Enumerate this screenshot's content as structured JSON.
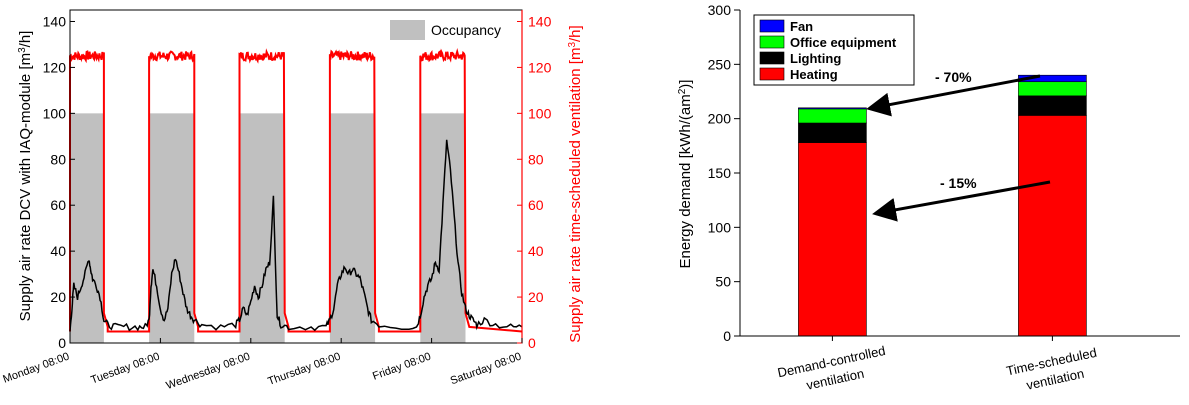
{
  "chart_data": [
    {
      "type": "line",
      "title": "",
      "ylabel_left": "Supply air rate DCV with IAQ-module [m³/h]",
      "ylabel_right": "Supply air rate time-scheduled ventilation [m³/h]",
      "ylim": [
        0,
        145
      ],
      "yticks": [
        "0",
        "20",
        "40",
        "60",
        "80",
        "100",
        "120",
        "140"
      ],
      "xlim_hours": [
        0,
        120
      ],
      "xticks": [
        "Monday 08:00",
        "Tuesday 08:00",
        "Wednesday 08:00",
        "Thursday 08:00",
        "Friday 08:00",
        "Saturday 08:00"
      ],
      "legend": {
        "position": "top-right",
        "entries": [
          "Occupancy"
        ]
      },
      "grid": false,
      "colors": {
        "occupancy": "#c0c0c0",
        "dcv": "#000000",
        "scheduled": "#ff0000"
      },
      "series": [
        {
          "name": "Occupancy",
          "kind": "area",
          "intervals": [
            [
              0,
              9
            ],
            [
              21,
              33
            ],
            [
              45,
              57
            ],
            [
              69,
              81
            ],
            [
              93,
              105
            ]
          ],
          "value": 100
        },
        {
          "kind": "line",
          "color": "red",
          "on_intervals": [
            [
              0,
              9
            ],
            [
              21,
              33
            ],
            [
              45,
              57
            ],
            [
              69,
              81
            ],
            [
              93,
              105
            ]
          ],
          "on_value": 125,
          "off_value": 5
        },
        {
          "kind": "line",
          "color": "black",
          "points": [
            [
              0,
              5
            ],
            [
              0.5,
              15
            ],
            [
              1,
              25
            ],
            [
              2,
              20
            ],
            [
              3,
              25
            ],
            [
              4,
              30
            ],
            [
              5,
              37
            ],
            [
              5.5,
              32
            ],
            [
              6,
              28
            ],
            [
              7,
              25
            ],
            [
              8,
              20
            ],
            [
              9,
              10
            ],
            [
              10,
              8
            ],
            [
              12,
              7
            ],
            [
              15,
              7
            ],
            [
              18,
              7
            ],
            [
              20,
              7
            ],
            [
              21,
              10
            ],
            [
              21.5,
              25
            ],
            [
              22,
              32
            ],
            [
              23,
              25
            ],
            [
              24,
              15
            ],
            [
              25,
              10
            ],
            [
              26,
              15
            ],
            [
              27,
              30
            ],
            [
              28,
              37
            ],
            [
              29,
              30
            ],
            [
              30,
              22
            ],
            [
              31,
              15
            ],
            [
              32,
              12
            ],
            [
              33,
              10
            ],
            [
              35,
              8
            ],
            [
              40,
              7
            ],
            [
              44,
              8
            ],
            [
              45,
              10
            ],
            [
              46,
              15
            ],
            [
              47,
              12
            ],
            [
              48,
              18
            ],
            [
              49,
              25
            ],
            [
              50,
              20
            ],
            [
              51,
              25
            ],
            [
              52,
              32
            ],
            [
              53,
              35
            ],
            [
              54,
              63
            ],
            [
              55,
              12
            ],
            [
              56,
              8
            ],
            [
              58,
              7
            ],
            [
              64,
              7
            ],
            [
              68,
              7
            ],
            [
              69,
              10
            ],
            [
              70,
              15
            ],
            [
              71,
              25
            ],
            [
              72,
              30
            ],
            [
              73,
              33
            ],
            [
              74,
              30
            ],
            [
              75,
              32
            ],
            [
              76,
              30
            ],
            [
              77,
              28
            ],
            [
              78,
              22
            ],
            [
              79,
              15
            ],
            [
              80,
              10
            ],
            [
              82,
              8
            ],
            [
              88,
              7
            ],
            [
              92,
              7
            ],
            [
              93,
              12
            ],
            [
              94,
              20
            ],
            [
              95,
              25
            ],
            [
              96,
              28
            ],
            [
              97,
              35
            ],
            [
              98,
              32
            ],
            [
              99,
              60
            ],
            [
              100,
              88
            ],
            [
              101,
              75
            ],
            [
              102,
              55
            ],
            [
              103,
              35
            ],
            [
              104,
              22
            ],
            [
              105,
              15
            ],
            [
              106,
              12
            ],
            [
              107,
              10
            ],
            [
              108,
              8
            ],
            [
              110,
              10
            ],
            [
              113,
              8
            ],
            [
              117,
              7
            ],
            [
              120,
              7
            ]
          ]
        }
      ]
    },
    {
      "type": "bar",
      "stacked": true,
      "title": "",
      "ylabel": "Energy demand [kWh/(am²)]",
      "ylim": [
        0,
        300
      ],
      "yticks": [
        "0",
        "50",
        "100",
        "150",
        "200",
        "250",
        "300"
      ],
      "categories": [
        "Demand-controlled ventilation",
        "Time-scheduled ventilation"
      ],
      "legend": {
        "position": "top-left"
      },
      "grid": false,
      "series": [
        {
          "name": "Heating",
          "color": "#ff0000",
          "values": [
            178,
            203
          ]
        },
        {
          "name": "Lighting",
          "color": "#000000",
          "values": [
            18,
            18
          ]
        },
        {
          "name": "Office equipment",
          "color": "#00ff00",
          "values": [
            13,
            13
          ]
        },
        {
          "name": "Fan",
          "color": "#0000ff",
          "values": [
            1,
            6
          ]
        }
      ],
      "annotations": [
        {
          "text": "- 70%",
          "from": [
            1,
            239
          ],
          "to": [
            0,
            210
          ]
        },
        {
          "text": "- 15%",
          "from": [
            1,
            140
          ],
          "to": [
            0,
            112
          ]
        }
      ]
    }
  ]
}
